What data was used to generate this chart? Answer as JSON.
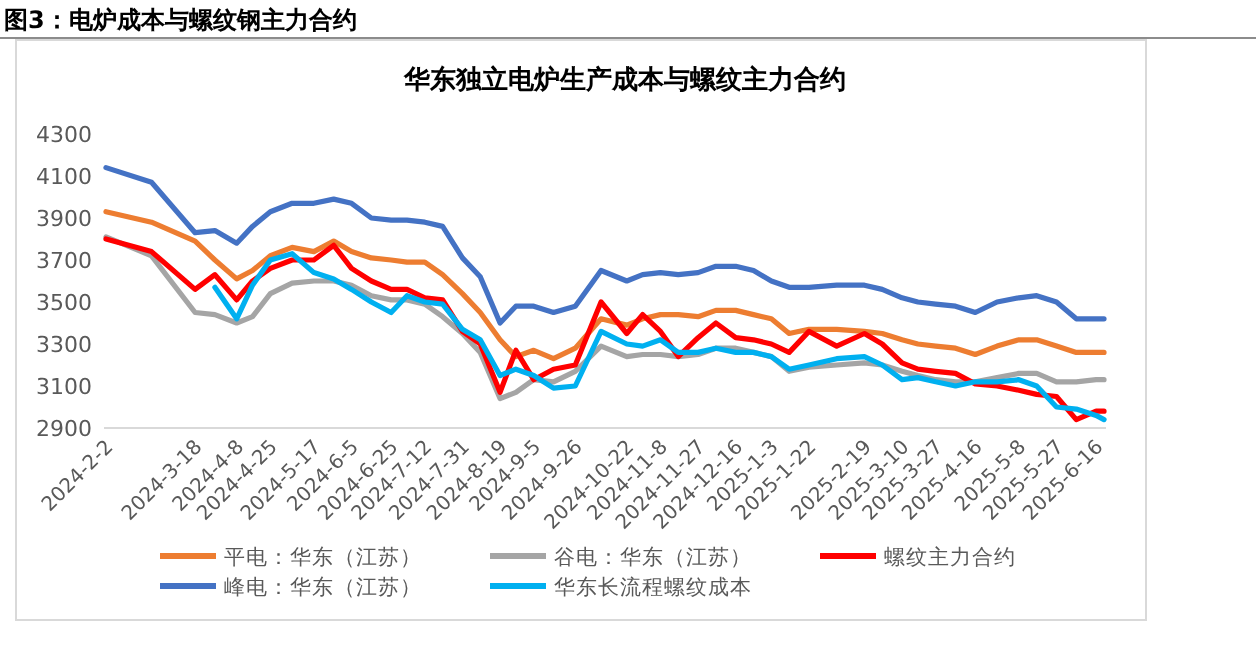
{
  "chart_data": {
    "type": "line",
    "title": "图3：电炉成本与螺纹钢主力合约",
    "subtitle": "华东独立电炉生产成本与螺纹主力合约",
    "x": [
      "2024-02-02",
      "2024-02-25",
      "2024-03-18",
      "2024-03-28",
      "2024-04-08",
      "2024-04-16",
      "2024-04-25",
      "2024-05-06",
      "2024-05-17",
      "2024-05-27",
      "2024-06-05",
      "2024-06-15",
      "2024-06-25",
      "2024-07-03",
      "2024-07-12",
      "2024-07-21",
      "2024-07-31",
      "2024-08-09",
      "2024-08-19",
      "2024-08-27",
      "2024-09-05",
      "2024-09-15",
      "2024-09-26",
      "2024-10-09",
      "2024-10-22",
      "2024-10-30",
      "2024-11-08",
      "2024-11-17",
      "2024-11-27",
      "2024-12-06",
      "2024-12-16",
      "2024-12-25",
      "2025-01-03",
      "2025-01-12",
      "2025-01-22",
      "2025-02-05",
      "2025-02-19",
      "2025-02-28",
      "2025-03-10",
      "2025-03-18",
      "2025-03-27",
      "2025-04-06",
      "2025-04-16",
      "2025-04-27",
      "2025-05-08",
      "2025-05-17",
      "2025-05-27",
      "2025-06-06",
      "2025-06-16",
      "2025-06-20"
    ],
    "series": [
      {
        "name": "平电：华东（江苏）",
        "color": "#ed7d31",
        "values": [
          3930,
          3880,
          3790,
          3700,
          3610,
          3650,
          3720,
          3760,
          3740,
          3790,
          3740,
          3710,
          3700,
          3690,
          3690,
          3630,
          3540,
          3450,
          3320,
          3240,
          3270,
          3230,
          3280,
          3420,
          3390,
          3420,
          3440,
          3440,
          3430,
          3460,
          3460,
          3440,
          3420,
          3350,
          3370,
          3370,
          3360,
          3350,
          3320,
          3300,
          3290,
          3280,
          3250,
          3290,
          3320,
          3320,
          3290,
          3260,
          3260,
          3260
        ]
      },
      {
        "name": "谷电：华东（江苏）",
        "color": "#a5a5a5",
        "values": [
          3810,
          3720,
          3450,
          3440,
          3400,
          3430,
          3540,
          3590,
          3600,
          3600,
          3580,
          3530,
          3510,
          3510,
          3490,
          3430,
          3350,
          3260,
          3040,
          3070,
          3130,
          3120,
          3170,
          3290,
          3240,
          3250,
          3250,
          3240,
          3250,
          3280,
          3280,
          3260,
          3240,
          3170,
          3190,
          3200,
          3210,
          3200,
          3170,
          3150,
          3130,
          3120,
          3120,
          3140,
          3160,
          3160,
          3120,
          3120,
          3130,
          3130
        ]
      },
      {
        "name": "螺纹主力合约",
        "color": "#ff0000",
        "values": [
          3800,
          3740,
          3560,
          3630,
          3510,
          3600,
          3660,
          3700,
          3700,
          3770,
          3660,
          3600,
          3560,
          3560,
          3520,
          3510,
          3360,
          3300,
          3070,
          3270,
          3130,
          3180,
          3200,
          3500,
          3350,
          3440,
          3360,
          3240,
          3330,
          3400,
          3330,
          3320,
          3300,
          3260,
          3360,
          3290,
          3350,
          3300,
          3210,
          3180,
          3170,
          3160,
          3110,
          3100,
          3080,
          3060,
          3050,
          2940,
          2980,
          2980
        ]
      },
      {
        "name": "峰电：华东（江苏）",
        "color": "#4472c4",
        "values": [
          4140,
          4070,
          3830,
          3840,
          3780,
          3860,
          3930,
          3970,
          3970,
          3990,
          3970,
          3900,
          3890,
          3890,
          3880,
          3860,
          3710,
          3620,
          3400,
          3480,
          3480,
          3450,
          3480,
          3650,
          3600,
          3630,
          3640,
          3630,
          3640,
          3670,
          3670,
          3650,
          3600,
          3570,
          3570,
          3580,
          3580,
          3560,
          3520,
          3500,
          3490,
          3480,
          3450,
          3500,
          3520,
          3530,
          3500,
          3420,
          3420,
          3420
        ]
      },
      {
        "name": "华东长流程螺纹成本",
        "color": "#00b0f0",
        "values": [
          null,
          null,
          null,
          3570,
          3420,
          3580,
          3700,
          3730,
          3640,
          3610,
          3560,
          3500,
          3450,
          3530,
          3500,
          3490,
          3370,
          3320,
          3150,
          3180,
          3150,
          3090,
          3100,
          3360,
          3300,
          3290,
          3320,
          3260,
          3260,
          3280,
          3260,
          3260,
          3240,
          3180,
          3200,
          3230,
          3240,
          3200,
          3130,
          3140,
          3120,
          3100,
          3120,
          3120,
          3130,
          3100,
          3000,
          2990,
          2960,
          2940
        ]
      }
    ],
    "xlim": [
      "2024-02-01",
      "2025-06-21"
    ],
    "xticks": [
      {
        "value": "2024-02-02",
        "label": "2024-2-2"
      },
      {
        "value": "2024-03-18",
        "label": "2024-3-18"
      },
      {
        "value": "2024-04-08",
        "label": "2024-4-8"
      },
      {
        "value": "2024-04-25",
        "label": "2024-4-25"
      },
      {
        "value": "2024-05-17",
        "label": "2024-5-17"
      },
      {
        "value": "2024-06-05",
        "label": "2024-6-5"
      },
      {
        "value": "2024-06-25",
        "label": "2024-6-25"
      },
      {
        "value": "2024-07-12",
        "label": "2024-7-12"
      },
      {
        "value": "2024-07-31",
        "label": "2024-7-31"
      },
      {
        "value": "2024-08-19",
        "label": "2024-8-19"
      },
      {
        "value": "2024-09-05",
        "label": "2024-9-5"
      },
      {
        "value": "2024-09-26",
        "label": "2024-9-26"
      },
      {
        "value": "2024-10-22",
        "label": "2024-10-22"
      },
      {
        "value": "2024-11-08",
        "label": "2024-11-8"
      },
      {
        "value": "2024-11-27",
        "label": "2024-11-27"
      },
      {
        "value": "2024-12-16",
        "label": "2024-12-16"
      },
      {
        "value": "2025-01-03",
        "label": "2025-1-3"
      },
      {
        "value": "2025-01-22",
        "label": "2025-1-22"
      },
      {
        "value": "2025-02-19",
        "label": "2025-2-19"
      },
      {
        "value": "2025-03-10",
        "label": "2025-3-10"
      },
      {
        "value": "2025-03-27",
        "label": "2025-3-27"
      },
      {
        "value": "2025-04-16",
        "label": "2025-4-16"
      },
      {
        "value": "2025-05-08",
        "label": "2025-5-8"
      },
      {
        "value": "2025-05-27",
        "label": "2025-5-27"
      },
      {
        "value": "2025-06-16",
        "label": "2025-6-16"
      }
    ],
    "ylim": [
      2900,
      4300
    ],
    "yticks": [
      2900,
      3100,
      3300,
      3500,
      3700,
      3900,
      4100,
      4300
    ],
    "grid": false,
    "legend": "bottom",
    "marker": "none",
    "line_style": "solid"
  }
}
